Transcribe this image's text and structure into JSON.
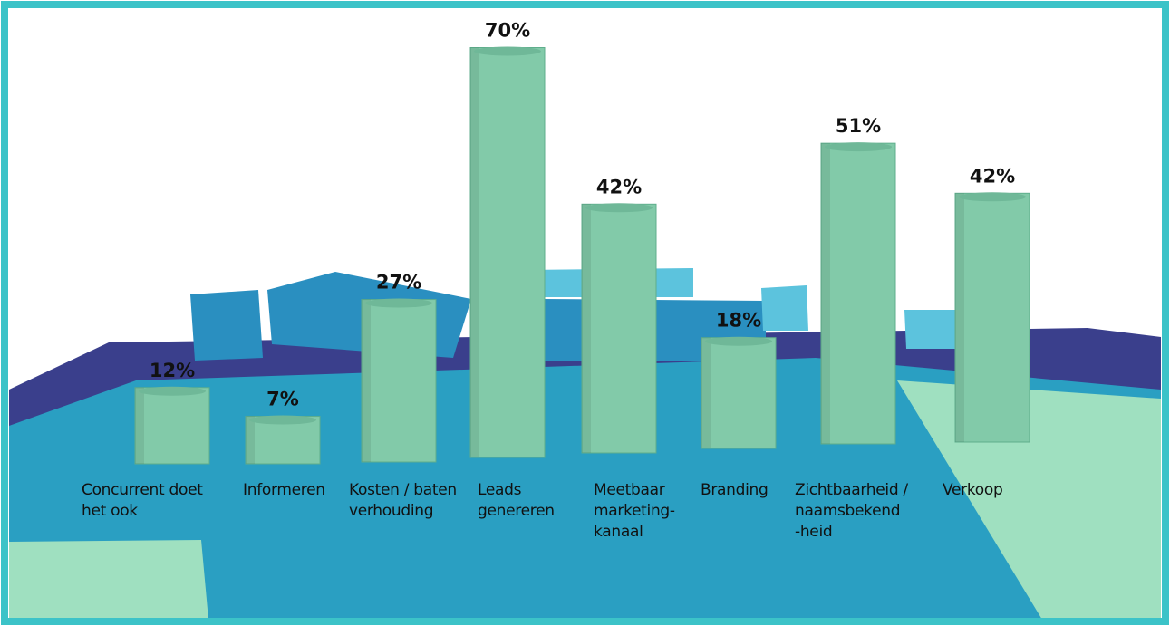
{
  "chart_data": {
    "type": "bar",
    "categories": [
      "Concurrent doet\nhet ook",
      "Informeren",
      "Kosten / baten\nverhouding",
      "Leads\ngenereren",
      "Meetbaar\nmarketing-\nkanaal",
      "Branding",
      "Zichtbaarheid /\nnaamsbekend\n-heid",
      "Verkoop"
    ],
    "values": [
      12,
      7,
      27,
      70,
      42,
      18,
      51,
      42
    ],
    "value_labels": [
      "12%",
      "7%",
      "27%",
      "70%",
      "42%",
      "18%",
      "51%",
      "42%"
    ],
    "color": "#82caa9"
  }
}
